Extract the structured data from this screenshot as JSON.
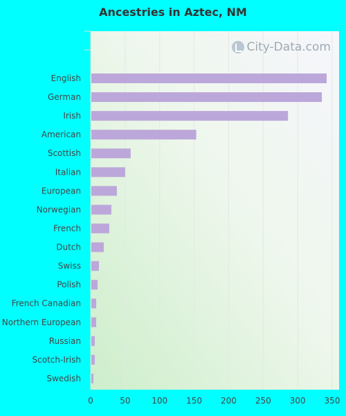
{
  "chart_data": {
    "type": "bar",
    "orientation": "horizontal",
    "title": "Ancestries in Aztec, NM",
    "categories": [
      "English",
      "German",
      "Irish",
      "American",
      "Scottish",
      "Italian",
      "European",
      "Norwegian",
      "French",
      "Dutch",
      "Swiss",
      "Polish",
      "French Canadian",
      "Northern European",
      "Russian",
      "Scotch-Irish",
      "Swedish"
    ],
    "values": [
      342,
      335,
      286,
      153,
      58,
      50,
      38,
      30,
      27,
      19,
      12,
      10,
      8,
      8,
      6,
      6,
      4
    ],
    "xlim": [
      0,
      350
    ],
    "xticks": [
      "0",
      "50",
      "100",
      "150",
      "200",
      "250",
      "300",
      "350"
    ],
    "grid": true,
    "bar_color": "#bca7da"
  },
  "watermark": "City-Data.com"
}
